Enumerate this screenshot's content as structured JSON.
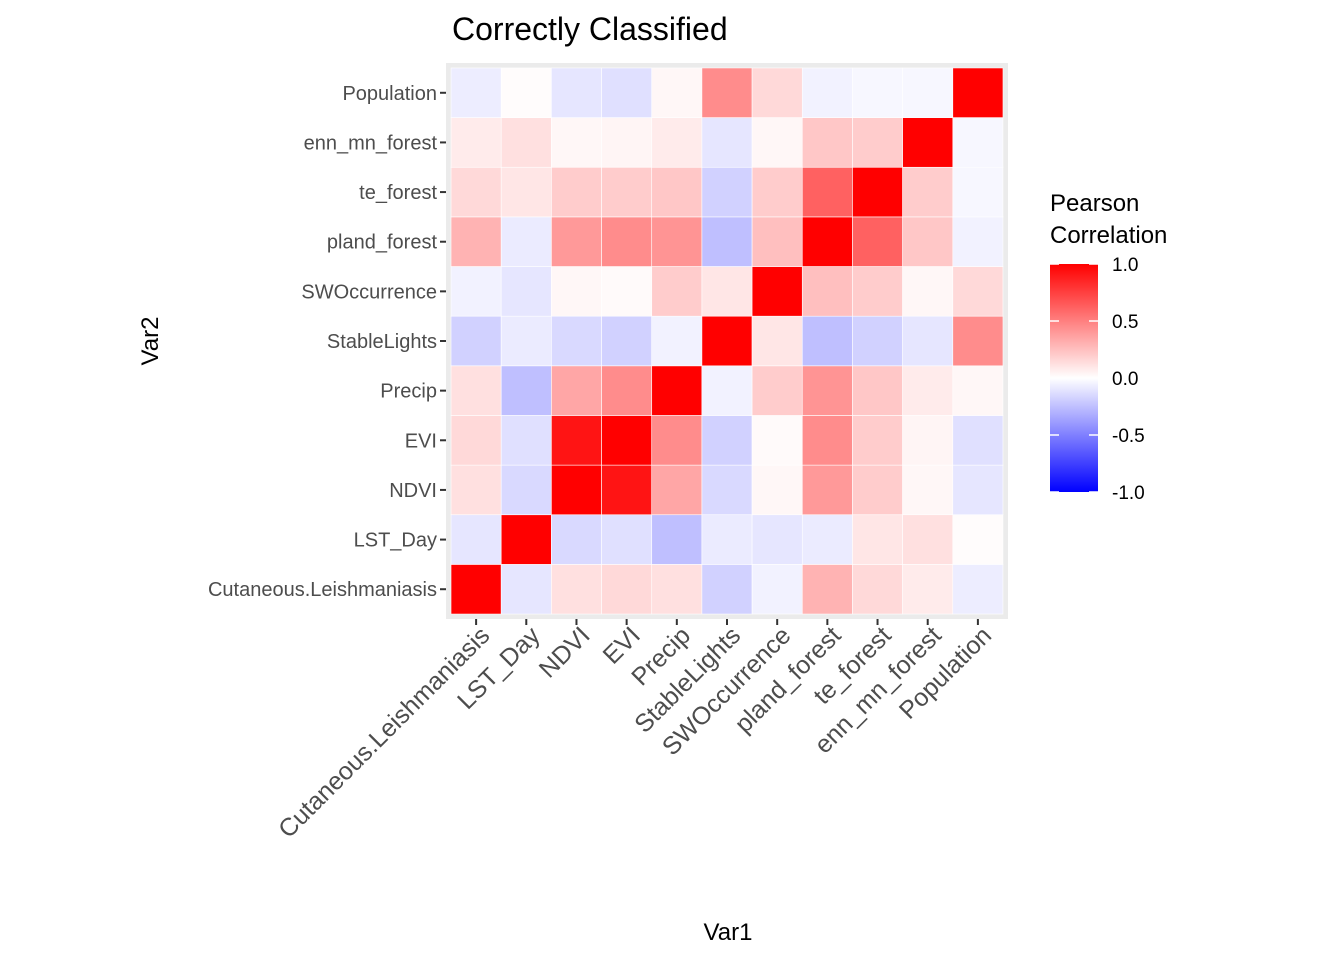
{
  "chart_data": {
    "type": "heatmap",
    "title": "Correctly Classified",
    "xlabel": "Var1",
    "ylabel": "Var2",
    "variables": [
      "Cutaneous.Leishmaniasis",
      "LST_Day",
      "NDVI",
      "EVI",
      "Precip",
      "StableLights",
      "SWOccurrence",
      "pland_forest",
      "te_forest",
      "enn_mn_forest",
      "Population"
    ],
    "matrix": [
      [
        1.0,
        -0.1,
        0.12,
        0.15,
        0.12,
        -0.18,
        -0.05,
        0.3,
        0.15,
        0.08,
        -0.07
      ],
      [
        -0.1,
        1.0,
        -0.15,
        -0.12,
        -0.25,
        -0.08,
        -0.1,
        -0.08,
        0.1,
        0.12,
        0.01
      ],
      [
        0.12,
        -0.15,
        1.0,
        0.92,
        0.35,
        -0.15,
        0.03,
        0.4,
        0.2,
        0.03,
        -0.1
      ],
      [
        0.15,
        -0.12,
        0.92,
        1.0,
        0.45,
        -0.18,
        0.02,
        0.45,
        0.2,
        0.04,
        -0.12
      ],
      [
        0.12,
        -0.25,
        0.35,
        0.45,
        1.0,
        -0.05,
        0.2,
        0.42,
        0.22,
        0.08,
        0.03
      ],
      [
        -0.18,
        -0.08,
        -0.15,
        -0.18,
        -0.05,
        1.0,
        0.1,
        -0.25,
        -0.18,
        -0.1,
        0.45
      ],
      [
        -0.05,
        -0.1,
        0.03,
        0.02,
        0.2,
        0.1,
        1.0,
        0.25,
        0.2,
        0.03,
        0.15
      ],
      [
        0.3,
        -0.08,
        0.4,
        0.45,
        0.42,
        -0.25,
        0.25,
        1.0,
        0.62,
        0.22,
        -0.05
      ],
      [
        0.15,
        0.1,
        0.2,
        0.2,
        0.22,
        -0.18,
        0.2,
        0.62,
        1.0,
        0.2,
        -0.03
      ],
      [
        0.08,
        0.12,
        0.03,
        0.04,
        0.08,
        -0.1,
        0.03,
        0.22,
        0.2,
        1.0,
        -0.03
      ],
      [
        -0.07,
        0.01,
        -0.1,
        -0.12,
        0.03,
        0.45,
        0.15,
        -0.05,
        -0.03,
        -0.03,
        1.0
      ]
    ],
    "color_scale": {
      "low": "#0000ff",
      "mid": "#ffffff",
      "high": "#ff0000",
      "limits": [
        -1,
        1
      ],
      "breaks": [
        1.0,
        0.5,
        0.0,
        -0.5,
        -1.0
      ],
      "break_labels": [
        "1.0",
        "0.5",
        "0.0",
        "-0.5",
        "-1.0"
      ]
    },
    "legend": {
      "title_lines": [
        "Pearson",
        "Correlation"
      ],
      "placement": "right"
    },
    "panel_background": "#ebebeb"
  }
}
